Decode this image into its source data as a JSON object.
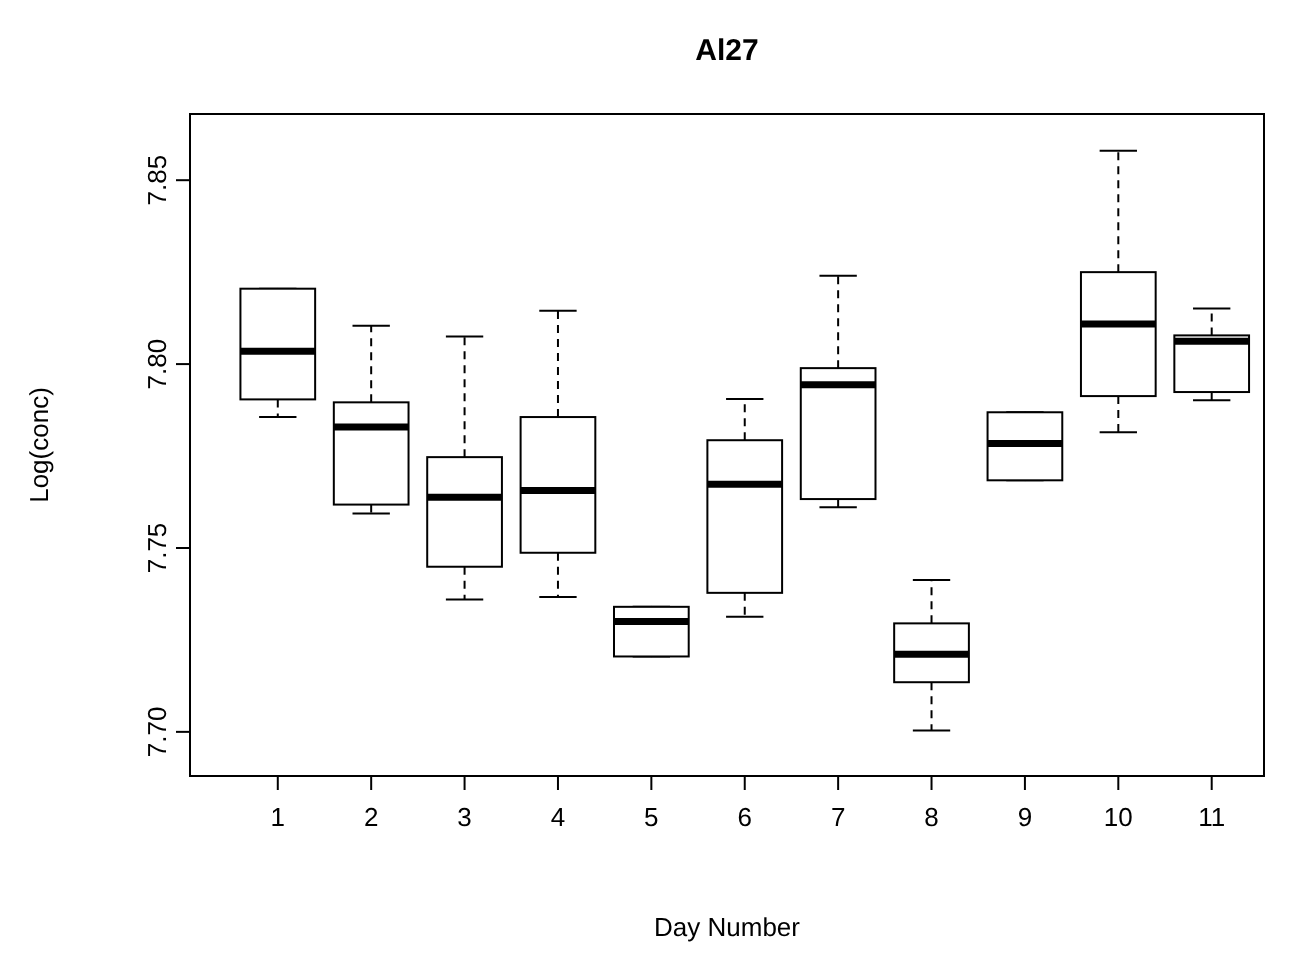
{
  "chart_data": {
    "type": "box",
    "title": "Al27",
    "xlabel": "Day Number",
    "ylabel": "Log(conc)",
    "categories": [
      "1",
      "2",
      "3",
      "4",
      "5",
      "6",
      "7",
      "8",
      "9",
      "10",
      "11"
    ],
    "ylim": [
      7.688,
      7.868
    ],
    "yticks": [
      {
        "value": 7.7,
        "label": "7.70"
      },
      7.75,
      {
        "value": 7.8,
        "label": "7.80"
      },
      7.85
    ],
    "grid": false,
    "boxes": [
      {
        "low": 7.7856,
        "q1": 7.7904,
        "median": 7.8035,
        "q3": 7.8205,
        "high": 7.8205
      },
      {
        "low": 7.7594,
        "q1": 7.7618,
        "median": 7.7829,
        "q3": 7.7896,
        "high": 7.8104
      },
      {
        "low": 7.736,
        "q1": 7.7449,
        "median": 7.7638,
        "q3": 7.7747,
        "high": 7.8075
      },
      {
        "low": 7.7367,
        "q1": 7.7487,
        "median": 7.7656,
        "q3": 7.7856,
        "high": 7.8145
      },
      {
        "low": 7.7205,
        "q1": 7.7205,
        "median": 7.73,
        "q3": 7.734,
        "high": 7.734
      },
      {
        "low": 7.7313,
        "q1": 7.7378,
        "median": 7.7673,
        "q3": 7.7793,
        "high": 7.7905
      },
      {
        "low": 7.7611,
        "q1": 7.7633,
        "median": 7.7944,
        "q3": 7.7989,
        "high": 7.824
      },
      {
        "low": 7.7004,
        "q1": 7.7135,
        "median": 7.7211,
        "q3": 7.7295,
        "high": 7.7413
      },
      {
        "low": 7.7684,
        "q1": 7.7684,
        "median": 7.7784,
        "q3": 7.7869,
        "high": 7.7869
      },
      {
        "low": 7.7815,
        "q1": 7.7913,
        "median": 7.8109,
        "q3": 7.825,
        "high": 7.858
      },
      {
        "low": 7.7902,
        "q1": 7.7924,
        "median": 7.8062,
        "q3": 7.8078,
        "high": 7.8151
      }
    ]
  }
}
